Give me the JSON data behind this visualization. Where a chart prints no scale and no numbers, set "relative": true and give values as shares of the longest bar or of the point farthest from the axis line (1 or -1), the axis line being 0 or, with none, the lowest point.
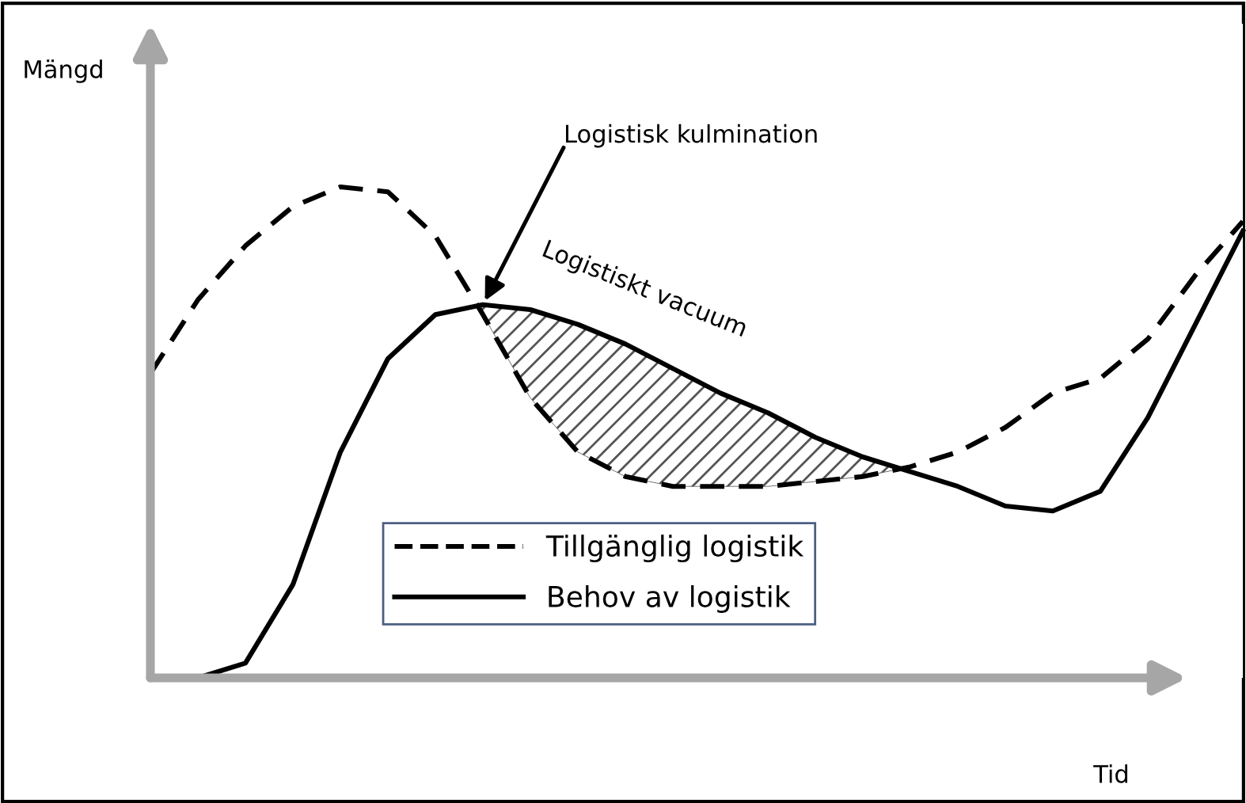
{
  "chart_data": {
    "type": "line",
    "relative": true,
    "xlabel": "Tid",
    "ylabel": "Mängd",
    "categories": [
      null,
      null,
      null,
      null,
      null,
      null,
      null,
      null,
      null,
      null,
      null,
      null,
      null,
      null,
      null,
      null,
      null,
      null,
      null,
      null,
      null,
      null,
      null,
      null
    ],
    "series": [
      {
        "name": "Tillgänglig logistik",
        "color": "#000000",
        "line_style": "dashed",
        "values": [
          0.62,
          0.77,
          0.88,
          0.96,
          1.0,
          0.99,
          0.9,
          0.74,
          0.57,
          0.46,
          0.41,
          0.39,
          0.39,
          0.39,
          0.4,
          0.41,
          0.43,
          0.46,
          0.51,
          0.58,
          0.61,
          0.69,
          0.82,
          0.93
        ]
      },
      {
        "name": "Behov av logistik",
        "color": "#000000",
        "line_style": "solid",
        "values": [
          0,
          0,
          0.03,
          0.19,
          0.46,
          0.65,
          0.74,
          0.76,
          0.75,
          0.72,
          0.68,
          0.63,
          0.58,
          0.54,
          0.49,
          0.45,
          0.42,
          0.39,
          0.35,
          0.34,
          0.38,
          0.53,
          0.72,
          0.91
        ]
      }
    ],
    "annotations": [
      "Logistisk kulmination",
      "Logistiskt vacuum"
    ],
    "legend": "bottom",
    "marker": "none"
  }
}
